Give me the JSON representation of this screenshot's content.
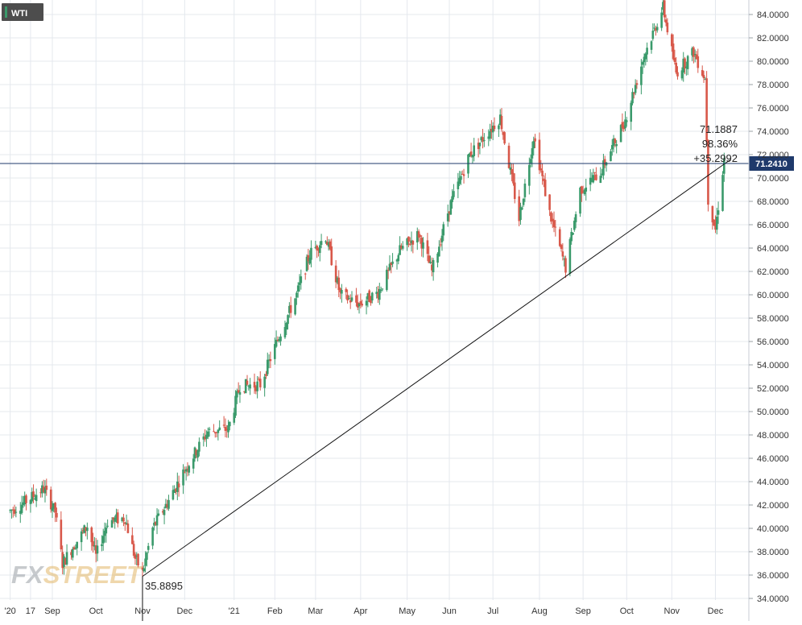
{
  "symbol": {
    "label": "WTI",
    "accent": "#3a9a6b",
    "background": "#4d4d4d"
  },
  "watermark": {
    "part1": "FX",
    "part2": "STREET",
    "color": "#e2b76a"
  },
  "price_tag": {
    "value": "71.2410",
    "color": "#1f3a6b"
  },
  "measure": {
    "line1": "71.1887",
    "line2": "98.36%",
    "line3": "+35.2992",
    "low_label": "35.8895"
  },
  "colors": {
    "up": "#3a9a6b",
    "down": "#d8584a",
    "grid": "#e4e8ee",
    "axis_text": "#333333",
    "price_line": "#1f3a6b"
  },
  "chart_data": {
    "type": "candlestick",
    "title": "WTI",
    "ylim": [
      34,
      85
    ],
    "y_ticks": [
      34,
      36,
      38,
      40,
      42,
      44,
      46,
      48,
      50,
      52,
      54,
      56,
      58,
      60,
      62,
      64,
      66,
      68,
      70,
      72,
      74,
      76,
      78,
      80,
      82,
      84
    ],
    "y_tick_labels": [
      "34.0000",
      "36.0000",
      "38.0000",
      "40.0000",
      "42.0000",
      "44.0000",
      "46.0000",
      "48.0000",
      "50.0000",
      "52.0000",
      "54.0000",
      "56.0000",
      "58.0000",
      "60.0000",
      "62.0000",
      "64.0000",
      "66.0000",
      "68.0000",
      "70.0000",
      "72.0000",
      "74.0000",
      "76.0000",
      "78.0000",
      "80.0000",
      "82.0000",
      "84.0000"
    ],
    "x_tick_labels": [
      "'20",
      "17",
      "Sep",
      "Oct",
      "Nov",
      "Dec",
      "'21",
      "Feb",
      "Mar",
      "Apr",
      "May",
      "Jun",
      "Jul",
      "Aug",
      "Sep",
      "Oct",
      "Nov",
      "Dec"
    ],
    "last_price": 71.241,
    "trendline": {
      "from": [
        "Nov 2, 2020",
        35.8895
      ],
      "to": [
        "Dec 7, 2021",
        71.1887
      ]
    },
    "price_path": [
      [
        "Aug 3, 2020",
        41.5
      ],
      [
        "Aug 10, 2020",
        42.0
      ],
      [
        "Aug 17, 2020",
        42.6
      ],
      [
        "Aug 26, 2020",
        43.4
      ],
      [
        "Sep 3, 2020",
        41.4
      ],
      [
        "Sep 8, 2020",
        37.0
      ],
      [
        "Sep 15, 2020",
        38.4
      ],
      [
        "Sep 25, 2020",
        40.2
      ],
      [
        "Oct 1, 2020",
        37.6
      ],
      [
        "Oct 9, 2020",
        40.6
      ],
      [
        "Oct 21, 2020",
        40.9
      ],
      [
        "Oct 28, 2020",
        37.4
      ],
      [
        "Nov 2, 2020",
        36.2
      ],
      [
        "Nov 9, 2020",
        40.0
      ],
      [
        "Nov 20, 2020",
        42.4
      ],
      [
        "Dec 1, 2020",
        45.0
      ],
      [
        "Dec 17, 2020",
        48.3
      ],
      [
        "Dec 31, 2020",
        48.5
      ],
      [
        "Jan 8, 2021",
        52.2
      ],
      [
        "Jan 22, 2021",
        52.3
      ],
      [
        "Feb 5, 2021",
        56.8
      ],
      [
        "Feb 16, 2021",
        60.0
      ],
      [
        "Feb 25, 2021",
        63.5
      ],
      [
        "Mar 8, 2021",
        65.0
      ],
      [
        "Mar 18, 2021",
        60.0
      ],
      [
        "Mar 31, 2021",
        59.2
      ],
      [
        "Apr 13, 2021",
        60.2
      ],
      [
        "Apr 28, 2021",
        63.8
      ],
      [
        "May 11, 2021",
        65.2
      ],
      [
        "May 20, 2021",
        62.0
      ],
      [
        "Jun 1, 2021",
        67.5
      ],
      [
        "Jun 15, 2021",
        72.0
      ],
      [
        "Jul 6, 2021",
        75.2
      ],
      [
        "Jul 19, 2021",
        66.5
      ],
      [
        "Jul 29, 2021",
        73.6
      ],
      [
        "Aug 9, 2021",
        67.0
      ],
      [
        "Aug 20, 2021",
        62.3
      ],
      [
        "Aug 30, 2021",
        69.0
      ],
      [
        "Sep 13, 2021",
        70.5
      ],
      [
        "Sep 30, 2021",
        75.0
      ],
      [
        "Oct 13, 2021",
        80.5
      ],
      [
        "Oct 26, 2021",
        84.6
      ],
      [
        "Nov 4, 2021",
        79.0
      ],
      [
        "Nov 16, 2021",
        80.8
      ],
      [
        "Nov 24, 2021",
        78.5
      ],
      [
        "Nov 26, 2021",
        68.2
      ],
      [
        "Dec 1, 2021",
        65.6
      ],
      [
        "Dec 7, 2021",
        71.6
      ]
    ]
  }
}
